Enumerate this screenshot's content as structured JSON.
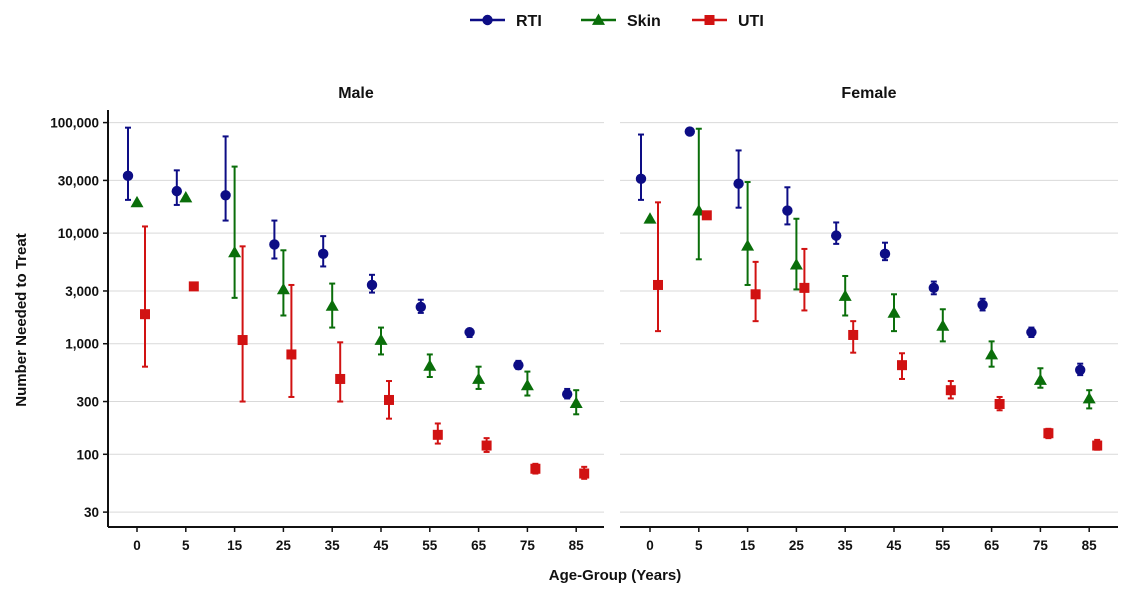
{
  "chart_data": {
    "type": "scatter",
    "variant": "point-range (point estimate with interval)",
    "ylabel": "Number Needed to Treat",
    "xlabel": "Age-Group (Years)",
    "y_scale": "log10",
    "ylim": [
      22,
      130000
    ],
    "y_ticks": [
      30,
      100,
      300,
      1000,
      3000,
      10000,
      30000,
      100000
    ],
    "y_tick_labels": [
      "30",
      "100",
      "300",
      "1,000",
      "3,000",
      "10,000",
      "30,000",
      "100,000"
    ],
    "categories": [
      "0",
      "5",
      "15",
      "25",
      "35",
      "45",
      "55",
      "65",
      "75",
      "85"
    ],
    "grid": "horizontal major gridlines",
    "legend": {
      "position": "top-center",
      "entries": [
        {
          "name": "RTI",
          "marker": "circle",
          "color": "#0d0d85"
        },
        {
          "name": "Skin",
          "marker": "triangle",
          "color": "#0a6e0a"
        },
        {
          "name": "UTI",
          "marker": "square",
          "color": "#d11212"
        }
      ]
    },
    "panels": [
      {
        "title": "Male",
        "series": [
          {
            "name": "RTI",
            "values": [
              33000,
              24000,
              22000,
              7900,
              6500,
              3400,
              2150,
              1270,
              640,
              350
            ],
            "lower": [
              20000,
              18000,
              13000,
              5900,
              5000,
              2900,
              1900,
              1150,
              590,
              320
            ],
            "upper": [
              90000,
              37000,
              75000,
              13000,
              9400,
              4200,
              2500,
              1350,
              700,
              390
            ]
          },
          {
            "name": "Skin",
            "values": [
              19000,
              21000,
              6700,
              3100,
              2200,
              1080,
              630,
              480,
              420,
              290
            ],
            "lower": null,
            "upper": null,
            "lower_partial": [
              null,
              null,
              2600,
              1800,
              1400,
              800,
              500,
              390,
              340,
              230
            ],
            "upper_partial": [
              null,
              null,
              40000,
              7000,
              3500,
              1400,
              800,
              620,
              560,
              380
            ]
          },
          {
            "name": "UTI",
            "values": [
              1850,
              3300,
              1080,
              800,
              480,
              310,
              150,
              120,
              74,
              67
            ],
            "lower": [
              620,
              null,
              300,
              330,
              300,
              210,
              125,
              105,
              67,
              60
            ],
            "upper": [
              11500,
              null,
              7600,
              3400,
              1030,
              460,
              190,
              140,
              82,
              77
            ]
          }
        ]
      },
      {
        "title": "Female",
        "series": [
          {
            "name": "RTI",
            "values": [
              31000,
              83000,
              28000,
              16000,
              9500,
              6500,
              3200,
              2250,
              1270,
              580
            ],
            "lower": [
              20000,
              null,
              17000,
              12000,
              8000,
              5700,
              2800,
              2000,
              1150,
              520
            ],
            "upper": [
              78000,
              null,
              56000,
              26000,
              12500,
              8200,
              3650,
              2550,
              1400,
              660
            ]
          },
          {
            "name": "Skin",
            "values": [
              13500,
              16000,
              7700,
              5200,
              2700,
              1900,
              1450,
              800,
              470,
              320
            ],
            "lower": [
              null,
              5800,
              3400,
              3100,
              1800,
              1300,
              1050,
              620,
              400,
              260
            ],
            "upper": [
              null,
              88000,
              29000,
              13500,
              4100,
              2800,
              2050,
              1050,
              600,
              380
            ]
          },
          {
            "name": "UTI",
            "values": [
              null,
              14500,
              2800,
              3200,
              1200,
              640,
              380,
              285,
              155,
              120
            ],
            "lower": [
              1300,
              null,
              1600,
              2000,
              830,
              480,
              320,
              250,
              140,
              110
            ],
            "upper": [
              19000,
              null,
              5500,
              7200,
              1600,
              820,
              460,
              330,
              170,
              135
            ],
            "visible_point_0": 3400
          }
        ]
      }
    ]
  }
}
